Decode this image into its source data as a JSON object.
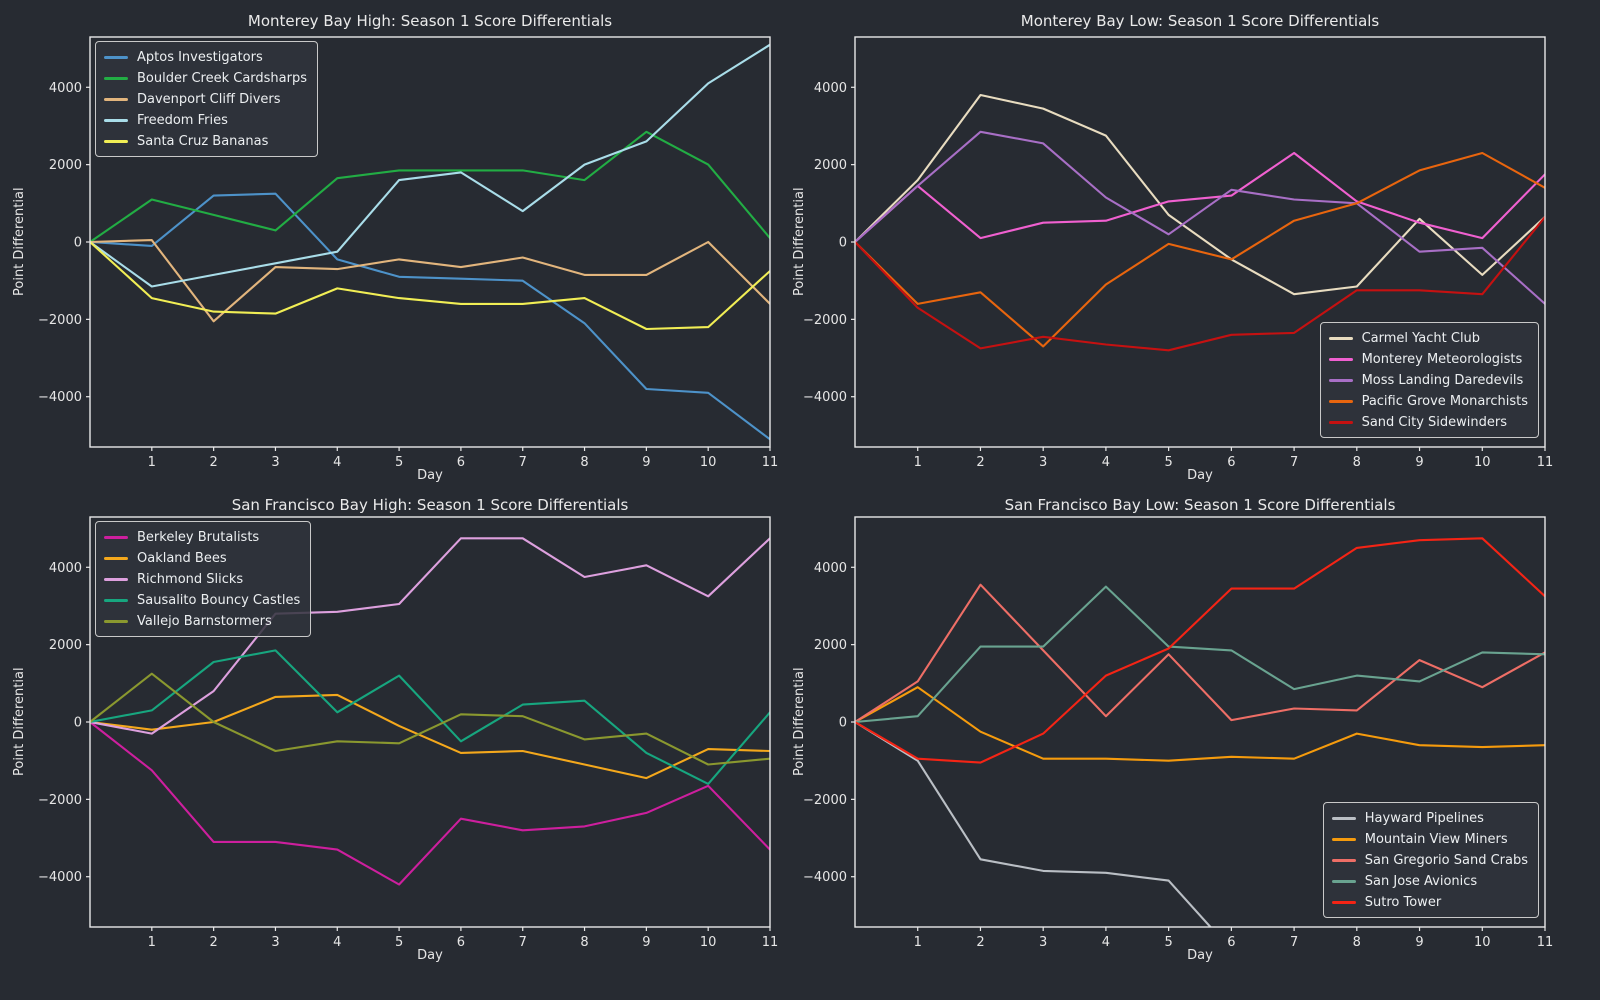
{
  "figure": {
    "background": "#272b32",
    "spine_color": "#e8e8e8",
    "text_color": "#e8e8e8",
    "tick_color": "#e6e6e6"
  },
  "chart_data": [
    {
      "id": "monterey-bay-high",
      "type": "line",
      "title": "Monterey Bay High: Season 1 Score Differentials",
      "xlabel": "Day",
      "ylabel": "Point Differential",
      "x": [
        0,
        1,
        2,
        3,
        4,
        5,
        6,
        7,
        8,
        9,
        10,
        11
      ],
      "xlim": [
        0,
        11
      ],
      "ylim": [
        -5300,
        5300
      ],
      "x_ticks": [
        1,
        2,
        3,
        4,
        5,
        6,
        7,
        8,
        9,
        10,
        11
      ],
      "y_ticks": [
        -4000,
        -2000,
        0,
        2000,
        4000
      ],
      "grid": false,
      "legend_position": "upper-left",
      "series": [
        {
          "name": "Aptos Investigators",
          "color": "#4d92c9",
          "values": [
            0,
            -100,
            1200,
            1250,
            -450,
            -900,
            -950,
            -1000,
            -2100,
            -3800,
            -3900,
            -5100
          ]
        },
        {
          "name": "Boulder Creek Cardsharps",
          "color": "#22ad44",
          "values": [
            0,
            1100,
            700,
            300,
            1650,
            1850,
            1850,
            1850,
            1600,
            2850,
            2000,
            100
          ]
        },
        {
          "name": "Davenport Cliff Divers",
          "color": "#e2b57d",
          "values": [
            0,
            50,
            -2050,
            -650,
            -700,
            -450,
            -650,
            -400,
            -850,
            -850,
            0,
            -1600
          ]
        },
        {
          "name": "Freedom Fries",
          "color": "#a9dde9",
          "values": [
            0,
            -1150,
            -850,
            -550,
            -250,
            1600,
            1800,
            800,
            2000,
            2600,
            4100,
            5100
          ]
        },
        {
          "name": "Santa Cruz Bananas",
          "color": "#f1ee55",
          "values": [
            0,
            -1450,
            -1800,
            -1850,
            -1200,
            -1450,
            -1600,
            -1600,
            -1450,
            -2250,
            -2200,
            -750
          ]
        }
      ]
    },
    {
      "id": "monterey-bay-low",
      "type": "line",
      "title": "Monterey Bay Low: Season 1 Score Differentials",
      "xlabel": "Day",
      "ylabel": "Point Differential",
      "x": [
        0,
        1,
        2,
        3,
        4,
        5,
        6,
        7,
        8,
        9,
        10,
        11
      ],
      "xlim": [
        0,
        11
      ],
      "ylim": [
        -5300,
        5300
      ],
      "x_ticks": [
        1,
        2,
        3,
        4,
        5,
        6,
        7,
        8,
        9,
        10,
        11
      ],
      "y_ticks": [
        -4000,
        -2000,
        0,
        2000,
        4000
      ],
      "grid": false,
      "legend_position": "lower-right",
      "series": [
        {
          "name": "Carmel Yacht Club",
          "color": "#e8dcc0",
          "values": [
            0,
            1600,
            3800,
            3450,
            2750,
            700,
            -450,
            -1350,
            -1150,
            600,
            -850,
            650
          ]
        },
        {
          "name": "Monterey Meteorologists",
          "color": "#f060d0",
          "values": [
            0,
            1450,
            100,
            500,
            550,
            1050,
            1200,
            2300,
            1050,
            500,
            100,
            1750
          ]
        },
        {
          "name": "Moss Landing Daredevils",
          "color": "#a86fc6",
          "values": [
            0,
            1450,
            2850,
            2550,
            1150,
            200,
            1350,
            1100,
            1000,
            -250,
            -150,
            -1600
          ]
        },
        {
          "name": "Pacific Grove Monarchists",
          "color": "#e8650e",
          "values": [
            0,
            -1600,
            -1300,
            -2700,
            -1100,
            -50,
            -450,
            550,
            1000,
            1850,
            2300,
            1400
          ]
        },
        {
          "name": "Sand City Sidewinders",
          "color": "#c51111",
          "values": [
            0,
            -1700,
            -2750,
            -2450,
            -2650,
            -2800,
            -2400,
            -2350,
            -1250,
            -1250,
            -1350,
            650
          ]
        }
      ]
    },
    {
      "id": "san-francisco-bay-high",
      "type": "line",
      "title": "San Francisco Bay High: Season 1 Score Differentials",
      "xlabel": "Day",
      "ylabel": "Point Differential",
      "x": [
        0,
        1,
        2,
        3,
        4,
        5,
        6,
        7,
        8,
        9,
        10,
        11
      ],
      "xlim": [
        0,
        11
      ],
      "ylim": [
        -5300,
        5300
      ],
      "x_ticks": [
        1,
        2,
        3,
        4,
        5,
        6,
        7,
        8,
        9,
        10,
        11
      ],
      "y_ticks": [
        -4000,
        -2000,
        0,
        2000,
        4000
      ],
      "grid": false,
      "legend_position": "upper-left",
      "series": [
        {
          "name": "Berkeley Brutalists",
          "color": "#cd1f9e",
          "values": [
            0,
            -1250,
            -3100,
            -3100,
            -3300,
            -4200,
            -2500,
            -2800,
            -2700,
            -2350,
            -1650,
            -3300
          ]
        },
        {
          "name": "Oakland Bees",
          "color": "#f4a81c",
          "values": [
            0,
            -200,
            0,
            650,
            700,
            -100,
            -800,
            -750,
            -1100,
            -1450,
            -700,
            -750
          ]
        },
        {
          "name": "Richmond Slicks",
          "color": "#dda0de",
          "values": [
            0,
            -300,
            800,
            2800,
            2850,
            3050,
            4750,
            4750,
            3750,
            4050,
            3250,
            4750
          ]
        },
        {
          "name": "Sausalito Bouncy Castles",
          "color": "#17a67f",
          "values": [
            0,
            300,
            1550,
            1850,
            250,
            1200,
            -500,
            450,
            550,
            -800,
            -1600,
            250
          ]
        },
        {
          "name": "Vallejo Barnstormers",
          "color": "#8a982f",
          "values": [
            0,
            1250,
            0,
            -750,
            -500,
            -550,
            200,
            150,
            -450,
            -300,
            -1100,
            -950
          ]
        }
      ]
    },
    {
      "id": "san-francisco-bay-low",
      "type": "line",
      "title": "San Francisco Bay Low: Season 1 Score Differentials",
      "xlabel": "Day",
      "ylabel": "Point Differential",
      "x": [
        0,
        1,
        2,
        3,
        4,
        5,
        6,
        7,
        8,
        9,
        10,
        11
      ],
      "xlim": [
        0,
        11
      ],
      "ylim": [
        -5300,
        5300
      ],
      "x_ticks": [
        1,
        2,
        3,
        4,
        5,
        6,
        7,
        8,
        9,
        10,
        11
      ],
      "y_ticks": [
        -4000,
        -2000,
        0,
        2000,
        4000
      ],
      "grid": false,
      "legend_position": "lower-right",
      "series": [
        {
          "name": "Hayward Pipelines",
          "color": "#babfc5",
          "values": [
            0,
            -1000,
            -3550,
            -3850,
            -3900,
            -4100,
            -5900
          ]
        },
        {
          "name": "Mountain View Miners",
          "color": "#f59b0d",
          "values": [
            0,
            900,
            -250,
            -950,
            -950,
            -1000,
            -900,
            -950,
            -300,
            -600,
            -650,
            -600
          ]
        },
        {
          "name": "San Gregorio Sand Crabs",
          "color": "#ee6e66",
          "values": [
            0,
            1050,
            3550,
            1850,
            150,
            1750,
            50,
            350,
            300,
            1600,
            900,
            1800
          ]
        },
        {
          "name": "San Jose Avionics",
          "color": "#69a390",
          "values": [
            0,
            150,
            1950,
            1950,
            3500,
            1950,
            1850,
            850,
            1200,
            1050,
            1800,
            1750
          ]
        },
        {
          "name": "Sutro Tower",
          "color": "#f42415",
          "values": [
            0,
            -950,
            -1050,
            -300,
            1200,
            1900,
            3450,
            3450,
            4500,
            4700,
            4750,
            3250
          ]
        }
      ]
    }
  ]
}
